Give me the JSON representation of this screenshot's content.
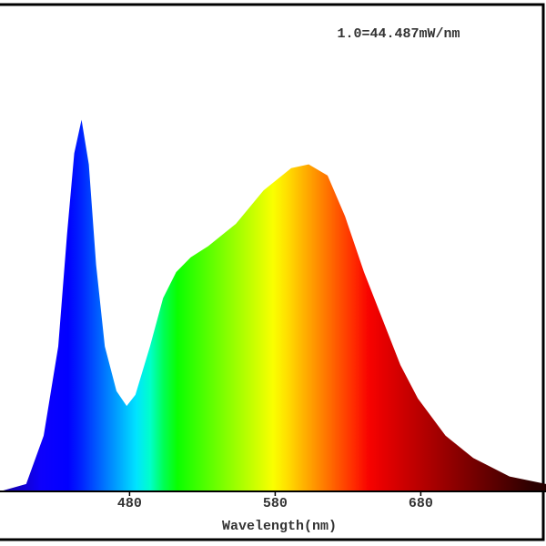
{
  "chart_data": {
    "type": "area",
    "annotation": "1.0=44.487mW/nm",
    "x_label": "Wavelength(nm)",
    "x": [
      391,
      409,
      421,
      431,
      437,
      442,
      447,
      452,
      457,
      463,
      471,
      478,
      484,
      494,
      503,
      512,
      522,
      534,
      553,
      572,
      591,
      603,
      616,
      628,
      641,
      653,
      666,
      678,
      697,
      716,
      741,
      766
    ],
    "values": [
      0,
      0.02,
      0.15,
      0.39,
      0.69,
      0.91,
      1.0,
      0.88,
      0.61,
      0.39,
      0.27,
      0.23,
      0.26,
      0.39,
      0.52,
      0.59,
      0.63,
      0.66,
      0.72,
      0.81,
      0.87,
      0.88,
      0.85,
      0.74,
      0.59,
      0.47,
      0.34,
      0.25,
      0.15,
      0.09,
      0.04,
      0.02
    ],
    "xlim": [
      391,
      766
    ],
    "ylim": [
      0,
      1.31
    ],
    "xticks": [
      480,
      580,
      680
    ]
  }
}
